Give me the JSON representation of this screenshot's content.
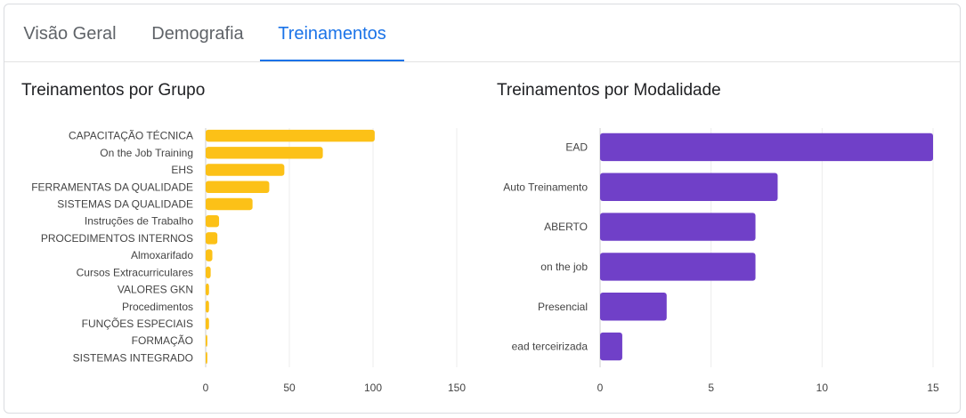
{
  "tabs": [
    {
      "label": "Visão Geral"
    },
    {
      "label": "Demografia"
    },
    {
      "label": "Treinamentos"
    }
  ],
  "active_tab": 2,
  "colors": {
    "accent": "#1a73e8",
    "bar_grupo": "#fcc117",
    "bar_modalidade": "#7040c8"
  },
  "chart_data": [
    {
      "type": "bar",
      "orientation": "horizontal",
      "title": "Treinamentos por Grupo",
      "categories": [
        "CAPACITAÇÃO TÉCNICA",
        "On the Job Training",
        "EHS",
        "FERRAMENTAS DA QUALIDADE",
        "SISTEMAS DA QUALIDADE",
        "Instruções de Trabalho",
        "PROCEDIMENTOS INTERNOS",
        "Almoxarifado",
        "Cursos Extracurriculares",
        "VALORES GKN",
        "Procedimentos",
        "FUNÇÕES ESPECIAIS",
        "FORMAÇÃO",
        "SISTEMAS INTEGRADO"
      ],
      "values": [
        101,
        70,
        47,
        38,
        28,
        8,
        7,
        4,
        3,
        2,
        2,
        2,
        1,
        1
      ],
      "xlim": [
        0,
        150
      ],
      "xticks": [
        "0",
        "50",
        "100",
        "150"
      ],
      "grid": true
    },
    {
      "type": "bar",
      "orientation": "horizontal",
      "title": "Treinamentos por Modalidade",
      "categories": [
        "EAD",
        "Auto Treinamento",
        "ABERTO",
        "on the job",
        "Presencial",
        "ead terceirizada"
      ],
      "values": [
        15,
        8,
        7,
        7,
        3,
        1
      ],
      "xlim": [
        0,
        15
      ],
      "xticks": [
        "0",
        "5",
        "10",
        "15"
      ],
      "grid": true
    }
  ]
}
